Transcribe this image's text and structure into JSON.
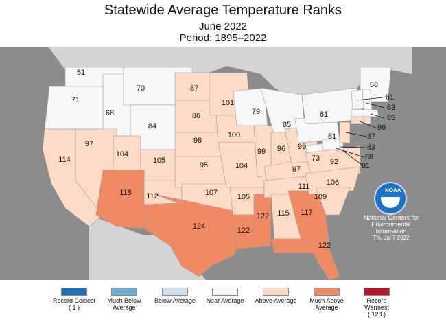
{
  "title": "Statewide Average Temperature Ranks",
  "subtitle": "June 2022",
  "period": "Period: 1895–2022",
  "colors": {
    "record_coldest": "#1f6fb5",
    "much_below": "#6aaed6",
    "below": "#cfe1f2",
    "near": "#f7f7f7",
    "above": "#fddbc7",
    "much_above": "#ef8a62",
    "record_warmest": "#b2182b",
    "ocean": "#8c8c8c"
  },
  "legend": [
    {
      "label": "Record Coldest",
      "extra": "( 1 )",
      "color_key": "record_coldest"
    },
    {
      "label": "Much Below Average",
      "extra": "",
      "color_key": "much_below"
    },
    {
      "label": "Below Average",
      "extra": "",
      "color_key": "below"
    },
    {
      "label": "Near Average",
      "extra": "",
      "color_key": "near"
    },
    {
      "label": "Above Average",
      "extra": "",
      "color_key": "above"
    },
    {
      "label": "Much Above Average",
      "extra": "",
      "color_key": "much_above"
    },
    {
      "label": "Record Warmest",
      "extra": "( 128 )",
      "color_key": "record_warmest"
    }
  ],
  "states": [
    {
      "name": "WA",
      "rank": "51",
      "category": "near"
    },
    {
      "name": "OR",
      "rank": "71",
      "category": "near"
    },
    {
      "name": "ID",
      "rank": "68",
      "category": "near"
    },
    {
      "name": "MT",
      "rank": "70",
      "category": "near"
    },
    {
      "name": "WY",
      "rank": "84",
      "category": "near"
    },
    {
      "name": "CA",
      "rank": "114",
      "category": "above"
    },
    {
      "name": "NV",
      "rank": "97",
      "category": "above"
    },
    {
      "name": "UT",
      "rank": "104",
      "category": "above"
    },
    {
      "name": "CO",
      "rank": "105",
      "category": "above"
    },
    {
      "name": "AZ",
      "rank": "118",
      "category": "much_above"
    },
    {
      "name": "NM",
      "rank": "112",
      "category": "above"
    },
    {
      "name": "ND",
      "rank": "87",
      "category": "above"
    },
    {
      "name": "SD",
      "rank": "86",
      "category": "above"
    },
    {
      "name": "NE",
      "rank": "98",
      "category": "above"
    },
    {
      "name": "KS",
      "rank": "95",
      "category": "above"
    },
    {
      "name": "OK",
      "rank": "107",
      "category": "above"
    },
    {
      "name": "TX",
      "rank": "124",
      "category": "much_above"
    },
    {
      "name": "MN",
      "rank": "101",
      "category": "above"
    },
    {
      "name": "IA",
      "rank": "100",
      "category": "above"
    },
    {
      "name": "MO",
      "rank": "104",
      "category": "above"
    },
    {
      "name": "AR",
      "rank": "105",
      "category": "above"
    },
    {
      "name": "LA",
      "rank": "122",
      "category": "much_above"
    },
    {
      "name": "WI",
      "rank": "79",
      "category": "near"
    },
    {
      "name": "IL",
      "rank": "99",
      "category": "above"
    },
    {
      "name": "MS",
      "rank": "122",
      "category": "much_above"
    },
    {
      "name": "MI",
      "rank": "85",
      "category": "near"
    },
    {
      "name": "IN",
      "rank": "96",
      "category": "above"
    },
    {
      "name": "KY",
      "rank": "97",
      "category": "above"
    },
    {
      "name": "TN",
      "rank": "111",
      "category": "above"
    },
    {
      "name": "AL",
      "rank": "115",
      "category": "above"
    },
    {
      "name": "GA",
      "rank": "117",
      "category": "much_above"
    },
    {
      "name": "FL",
      "rank": "122",
      "category": "much_above"
    },
    {
      "name": "OH",
      "rank": "99",
      "category": "above"
    },
    {
      "name": "WV",
      "rank": "73",
      "category": "near"
    },
    {
      "name": "VA",
      "rank": "92",
      "category": "above"
    },
    {
      "name": "NC",
      "rank": "106",
      "category": "above"
    },
    {
      "name": "SC",
      "rank": "109",
      "category": "above"
    },
    {
      "name": "PA",
      "rank": "81",
      "category": "near"
    },
    {
      "name": "NY",
      "rank": "61",
      "category": "near"
    },
    {
      "name": "ME",
      "rank": "58",
      "category": "near"
    },
    {
      "name": "VT",
      "rank": "61",
      "category": "near"
    },
    {
      "name": "NH",
      "rank": "63",
      "category": "near"
    },
    {
      "name": "MA",
      "rank": "85",
      "category": "near"
    },
    {
      "name": "CT",
      "rank": "96",
      "category": "above"
    },
    {
      "name": "NJ",
      "rank": "87",
      "category": "above"
    },
    {
      "name": "DE",
      "rank": "83",
      "category": "near"
    },
    {
      "name": "MD",
      "rank": "88",
      "category": "near"
    },
    {
      "name": "RI",
      "rank": "91",
      "category": "above"
    }
  ],
  "noaa": {
    "logo_text": "NOAA",
    "line1": "National Centers for",
    "line2": "Environmental",
    "line3": "Information",
    "date": "Thu Jul  7 2022"
  }
}
